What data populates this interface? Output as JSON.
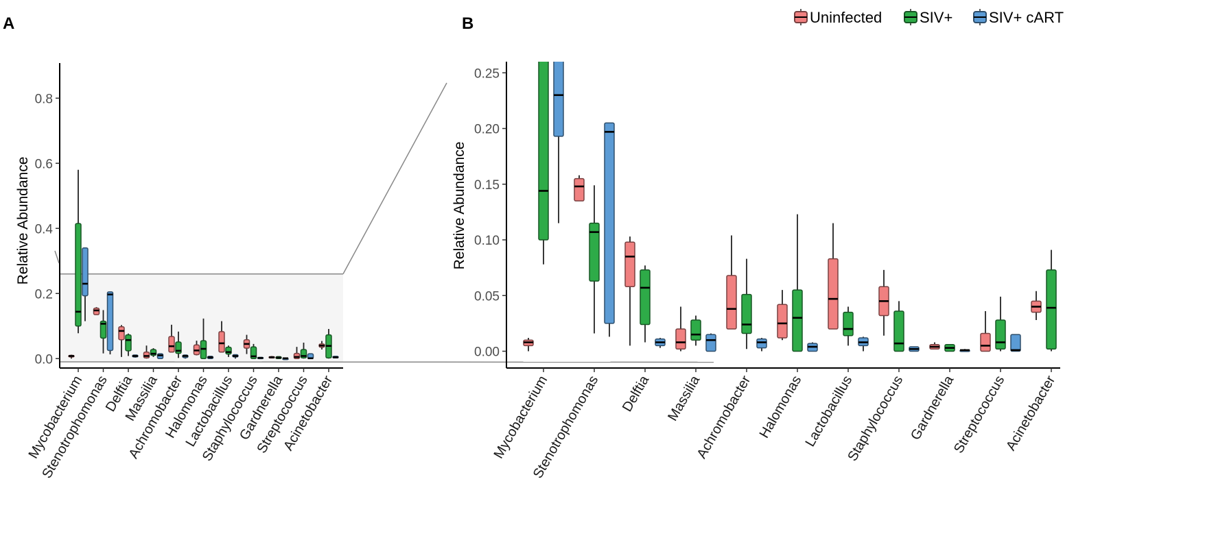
{
  "panel_labels": {
    "a": "A",
    "b": "B"
  },
  "legend": [
    {
      "name": "Uninfected",
      "color": "#f08080"
    },
    {
      "name": "SIV+",
      "color": "#2eab48"
    },
    {
      "name": "SIV+ cART",
      "color": "#5b9bd5"
    }
  ],
  "chart_data": [
    {
      "type": "box",
      "panel": "A",
      "title": "",
      "xlabel": "",
      "ylabel": "Relative Abundance",
      "ylim": [
        -0.01,
        0.87
      ],
      "yticks": [
        0.0,
        0.2,
        0.4,
        0.6,
        0.8
      ],
      "ytick_labels": [
        "0.0",
        "0.2",
        "0.4",
        "0.6",
        "0.8"
      ],
      "zoom_band": [
        -0.01,
        0.26
      ],
      "categories": [
        "Mycobacterium",
        "Stenotrophomonas",
        "Delftia",
        "Massilia",
        "Achromobacter",
        "Halomonas",
        "Lactobacillus",
        "Staphylococcus",
        "Gardnerella",
        "Streptococcus",
        "Acinetobacter"
      ],
      "series": [
        {
          "name": "Uninfected",
          "boxes": [
            {
              "min": 0.0,
              "q1": 0.005,
              "median": 0.008,
              "q3": 0.01,
              "max": 0.012
            },
            {
              "min": 0.135,
              "q1": 0.135,
              "median": 0.148,
              "q3": 0.155,
              "max": 0.158
            },
            {
              "min": 0.005,
              "q1": 0.058,
              "median": 0.085,
              "q3": 0.098,
              "max": 0.103
            },
            {
              "min": 0.0,
              "q1": 0.002,
              "median": 0.008,
              "q3": 0.02,
              "max": 0.04
            },
            {
              "min": 0.02,
              "q1": 0.02,
              "median": 0.038,
              "q3": 0.068,
              "max": 0.104
            },
            {
              "min": 0.01,
              "q1": 0.012,
              "median": 0.025,
              "q3": 0.042,
              "max": 0.055
            },
            {
              "min": 0.02,
              "q1": 0.02,
              "median": 0.047,
              "q3": 0.083,
              "max": 0.115
            },
            {
              "min": 0.014,
              "q1": 0.032,
              "median": 0.045,
              "q3": 0.058,
              "max": 0.073
            },
            {
              "min": 0.002,
              "q1": 0.002,
              "median": 0.004,
              "q3": 0.006,
              "max": 0.008
            },
            {
              "min": 0.0,
              "q1": 0.0,
              "median": 0.005,
              "q3": 0.016,
              "max": 0.036
            },
            {
              "min": 0.028,
              "q1": 0.035,
              "median": 0.04,
              "q3": 0.045,
              "max": 0.054
            }
          ]
        },
        {
          "name": "SIV+",
          "boxes": [
            {
              "min": 0.078,
              "q1": 0.1,
              "median": 0.144,
              "q3": 0.415,
              "max": 0.58
            },
            {
              "min": 0.016,
              "q1": 0.063,
              "median": 0.107,
              "q3": 0.115,
              "max": 0.149
            },
            {
              "min": 0.008,
              "q1": 0.024,
              "median": 0.057,
              "q3": 0.073,
              "max": 0.077
            },
            {
              "min": 0.005,
              "q1": 0.01,
              "median": 0.015,
              "q3": 0.028,
              "max": 0.032
            },
            {
              "min": 0.002,
              "q1": 0.016,
              "median": 0.024,
              "q3": 0.051,
              "max": 0.083
            },
            {
              "min": 0.0,
              "q1": 0.0,
              "median": 0.03,
              "q3": 0.055,
              "max": 0.123
            },
            {
              "min": 0.005,
              "q1": 0.014,
              "median": 0.02,
              "q3": 0.035,
              "max": 0.04
            },
            {
              "min": 0.0,
              "q1": 0.0,
              "median": 0.007,
              "q3": 0.036,
              "max": 0.045
            },
            {
              "min": 0.0,
              "q1": 0.0,
              "median": 0.003,
              "q3": 0.006,
              "max": 0.006
            },
            {
              "min": 0.0,
              "q1": 0.002,
              "median": 0.008,
              "q3": 0.028,
              "max": 0.049
            },
            {
              "min": 0.0,
              "q1": 0.002,
              "median": 0.039,
              "q3": 0.073,
              "max": 0.091
            }
          ]
        },
        {
          "name": "SIV+ cART",
          "boxes": [
            {
              "min": 0.115,
              "q1": 0.193,
              "median": 0.23,
              "q3": 0.34,
              "max": 0.34
            },
            {
              "min": 0.013,
              "q1": 0.025,
              "median": 0.197,
              "q3": 0.205,
              "max": 0.205
            },
            {
              "min": 0.003,
              "q1": 0.005,
              "median": 0.008,
              "q3": 0.011,
              "max": 0.012
            },
            {
              "min": 0.0,
              "q1": 0.0,
              "median": 0.01,
              "q3": 0.015,
              "max": 0.016
            },
            {
              "min": 0.0,
              "q1": 0.003,
              "median": 0.008,
              "q3": 0.011,
              "max": 0.012
            },
            {
              "min": 0.0,
              "q1": 0.0,
              "median": 0.004,
              "q3": 0.007,
              "max": 0.008
            },
            {
              "min": 0.0,
              "q1": 0.005,
              "median": 0.008,
              "q3": 0.012,
              "max": 0.013
            },
            {
              "min": 0.0,
              "q1": 0.0,
              "median": 0.002,
              "q3": 0.004,
              "max": 0.004
            },
            {
              "min": 0.0,
              "q1": 0.0,
              "median": 0.001,
              "q3": 0.001,
              "max": 0.002
            },
            {
              "min": 0.0,
              "q1": 0.0,
              "median": 0.001,
              "q3": 0.015,
              "max": 0.015
            },
            {
              "min": 0.002,
              "q1": 0.002,
              "median": 0.004,
              "q3": 0.007,
              "max": 0.007
            }
          ]
        }
      ]
    },
    {
      "type": "box",
      "panel": "B",
      "title": "",
      "xlabel": "",
      "ylabel": "Relative Abundance",
      "ylim": [
        -0.012,
        0.26
      ],
      "yticks": [
        0.0,
        0.05,
        0.1,
        0.15,
        0.2,
        0.25
      ],
      "ytick_labels": [
        "0.00",
        "0.05",
        "0.10",
        "0.15",
        "0.20",
        "0.25"
      ],
      "categories": [
        "Mycobacterium",
        "Stenotrophomonas",
        "Delftia",
        "Massilia",
        "Achromobacter",
        "Halomonas",
        "Lactobacillus",
        "Staphylococcus",
        "Gardnerella",
        "Streptococcus",
        "Acinetobacter"
      ],
      "series_ref": "panel A (same data, zoomed to 0-0.26)"
    }
  ]
}
